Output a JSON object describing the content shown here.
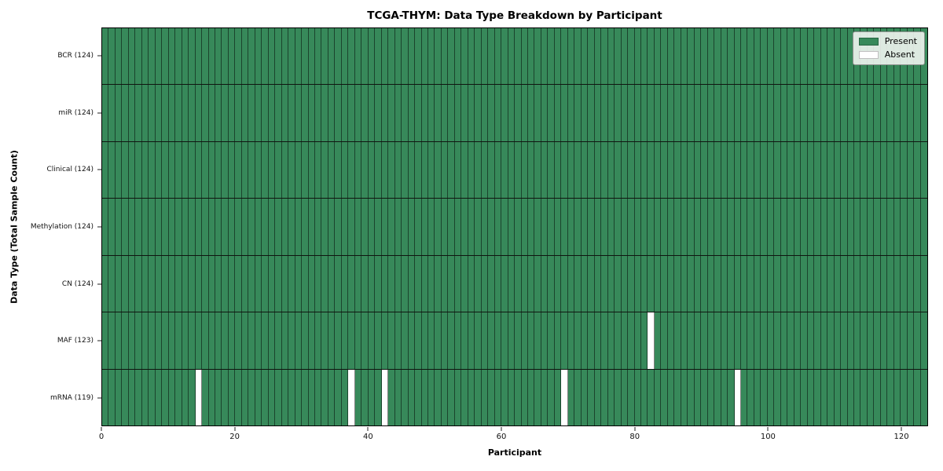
{
  "title": "TCGA-THYM: Data Type Breakdown by Participant",
  "colors": {
    "present": "#37895A",
    "absent": "#ffffff",
    "cell_edge": "rgba(0,0,0,0.5)",
    "row_edge": "#101510",
    "spine": "#000000"
  },
  "chart_data": {
    "type": "heatmap",
    "title": "TCGA-THYM: Data Type Breakdown by Participant",
    "xlabel": "Participant",
    "ylabel": "Data Type (Total Sample Count)",
    "n_participants": 124,
    "xlim": [
      0,
      124
    ],
    "x_ticks": [
      0,
      20,
      40,
      60,
      80,
      100,
      120
    ],
    "grid": false,
    "legend_position": "upper right",
    "rows": [
      {
        "name": "BCR",
        "label": "BCR (124)",
        "total_samples": 124,
        "absent_participants": []
      },
      {
        "name": "miR",
        "label": "miR (124)",
        "total_samples": 124,
        "absent_participants": []
      },
      {
        "name": "Clinical",
        "label": "Clinical (124)",
        "total_samples": 124,
        "absent_participants": []
      },
      {
        "name": "Methylation",
        "label": "Methylation (124)",
        "total_samples": 124,
        "absent_participants": []
      },
      {
        "name": "CN",
        "label": "CN (124)",
        "total_samples": 124,
        "absent_participants": []
      },
      {
        "name": "MAF",
        "label": "MAF (123)",
        "total_samples": 123,
        "absent_participants": [
          82
        ]
      },
      {
        "name": "mRNA",
        "label": "mRNA (119)",
        "total_samples": 119,
        "absent_participants": [
          14,
          37,
          42,
          69,
          95
        ]
      }
    ],
    "legend": [
      {
        "label": "Present",
        "color_key": "present"
      },
      {
        "label": "Absent",
        "color_key": "absent"
      }
    ]
  }
}
